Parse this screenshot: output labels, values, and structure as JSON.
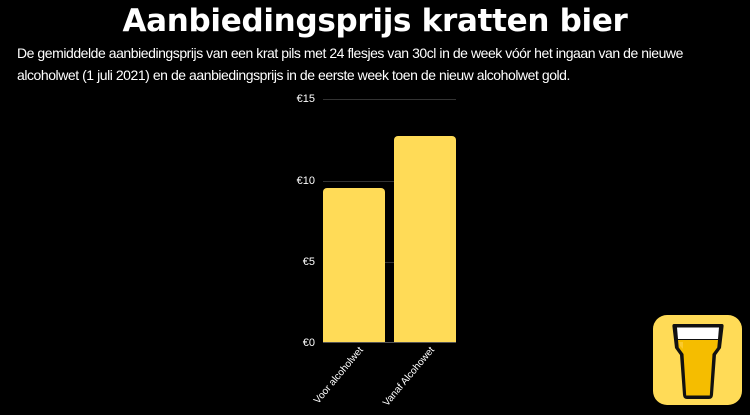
{
  "header": {
    "title": "Aanbiedingsprijs kratten bier",
    "subtitle": "De gemiddelde aanbiedingsprijs van een krat pils met 24 flesjes  van 30cl in de week vóór het ingaan van de nieuwe alcoholwet (1 juli 2021) en de aanbiedingsprijs in de eerste week toen de nieuw alcoholwet gold."
  },
  "chart": {
    "yticks": [
      "€15",
      "€10",
      "€5",
      "€0"
    ],
    "xlabels": [
      "Voor alcoholwet",
      "Vanaf Alcohowet"
    ]
  },
  "colors": {
    "background": "#000000",
    "bar": "#ffdb57",
    "gridline": "#333333",
    "logo_bg": "#ffdb57",
    "beer": "#f5bd00"
  },
  "logo": {
    "icon": "beer-glass-icon"
  },
  "chart_data": {
    "type": "bar",
    "title": "Aanbiedingsprijs kratten bier",
    "subtitle": "De gemiddelde aanbiedingsprijs van een krat pils met 24 flesjes van 30cl in de week vóór het ingaan van de nieuwe alcoholwet (1 juli 2021) en de aanbiedingsprijs in de eerste week toen de nieuw alcoholwet gold.",
    "categories": [
      "Voor alcoholwet",
      "Vanaf Alcohowet"
    ],
    "values": [
      9.5,
      12.7
    ],
    "xlabel": "",
    "ylabel": "",
    "ylim": [
      0,
      15
    ],
    "yticks": [
      0,
      5,
      10,
      15
    ],
    "ytick_labels": [
      "€0",
      "€5",
      "€10",
      "€15"
    ],
    "grid": true,
    "legend": null,
    "unit": "EUR"
  }
}
